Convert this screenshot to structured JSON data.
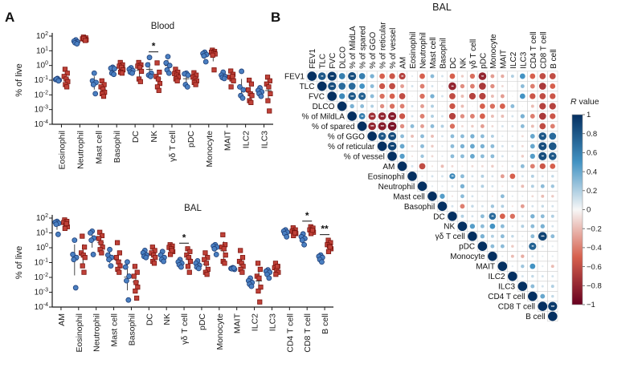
{
  "panels": {
    "a_label": "A",
    "b_label": "B"
  },
  "colors": {
    "blue_marker": "#4a7fc1",
    "blue_edge": "#1f3f77",
    "red_marker": "#bf4138",
    "red_edge": "#7c150f",
    "axis": "#1a1a1a",
    "corr_pos": "#053061",
    "corr_mid": "#f7f7f7",
    "corr_neg": "#67001f",
    "grid": "#c9c9c9"
  },
  "chart_data": [
    {
      "type": "scatter",
      "id": "blood",
      "title": "Blood",
      "ylabel": "% of live",
      "yscale": "log",
      "ylim": [
        0.0001,
        100
      ],
      "y_tick_exponents": [
        2,
        1,
        0,
        -1,
        -2,
        -3,
        -4
      ],
      "categories": [
        "Eosinophil",
        "Neutrophil",
        "Mast cell",
        "Basophil",
        "DC",
        "NK",
        "γδ T cell",
        "pDC",
        "Monocyte",
        "MAIT",
        "ILC2",
        "ILC3"
      ],
      "series": {
        "blue": [
          [
            0.13,
            0.11,
            0.1,
            0.12,
            0.09
          ],
          [
            55,
            45,
            40,
            35,
            30
          ],
          [
            0.3,
            0.09,
            0.07,
            0.05,
            0.012
          ],
          [
            0.75,
            0.65,
            0.6,
            0.3,
            0.25
          ],
          [
            0.7,
            0.55,
            0.45,
            0.35,
            0.3
          ],
          [
            3.5,
            1.1,
            0.3,
            0.22,
            0.18
          ],
          [
            4,
            1.5,
            1.0,
            0.5,
            0.3
          ],
          [
            0.3,
            0.27,
            0.22,
            0.05,
            0.035
          ],
          [
            8,
            6.5,
            5.5,
            4.5,
            1.8
          ],
          [
            0.35,
            0.22,
            0.18,
            0.15,
            0.13
          ],
          [
            0.4,
            0.035,
            0.022,
            0.009,
            0.006
          ],
          [
            0.03,
            0.02,
            0.016,
            0.012,
            0.008
          ]
        ],
        "red": [
          [
            0.55,
            0.3,
            0.18,
            0.12,
            0.08,
            0.05,
            0.035
          ],
          [
            85,
            75,
            65,
            60,
            55,
            70,
            50
          ],
          [
            0.09,
            0.05,
            0.035,
            0.025,
            0.015,
            0.012,
            0.008
          ],
          [
            1.6,
            1.1,
            0.9,
            0.75,
            0.5,
            0.35,
            0.3
          ],
          [
            1.6,
            1.1,
            0.9,
            0.75,
            0.4,
            0.12,
            0.08
          ],
          [
            1.5,
            0.35,
            0.18,
            0.12,
            0.06,
            0.035,
            0.02
          ],
          [
            0.55,
            0.35,
            0.28,
            0.22,
            0.16,
            0.12,
            0.09
          ],
          [
            0.32,
            0.22,
            0.16,
            0.12,
            0.09,
            0.07,
            0.05
          ],
          [
            11,
            9,
            8,
            7,
            6,
            5,
            0.5
          ],
          [
            0.42,
            0.25,
            0.16,
            0.12,
            0.09,
            0.035,
            0.18
          ],
          [
            0.1,
            0.055,
            0.022,
            0.012,
            0.009,
            0.004,
            0.003
          ],
          [
            0.16,
            0.09,
            0.055,
            0.035,
            0.012,
            0.004,
            0.0008
          ]
        ]
      },
      "significance": [
        {
          "category": "NK",
          "label": "*"
        }
      ]
    },
    {
      "type": "scatter",
      "id": "bal",
      "title": "BAL",
      "ylabel": "% of live",
      "yscale": "log",
      "ylim": [
        0.0001,
        100
      ],
      "y_tick_exponents": [
        2,
        1,
        0,
        -1,
        -2,
        -3,
        -4
      ],
      "categories": [
        "AM",
        "Eosinophil",
        "Neutrophil",
        "Mast cell",
        "Basophil",
        "DC",
        "NK",
        "γδ T cell",
        "pDC",
        "Monocyte",
        "MAIT",
        "ILC2",
        "ILC3",
        "CD4 T cell",
        "CD8 T cell",
        "B cell"
      ],
      "series": {
        "blue": [
          [
            60,
            52,
            45,
            38,
            8
          ],
          [
            3.2,
            0.35,
            0.22,
            0.16,
            0.002
          ],
          [
            13,
            10,
            4.5,
            3.2,
            0.35
          ],
          [
            0.75,
            0.32,
            0.22,
            0.16,
            0.06
          ],
          [
            0.11,
            0.05,
            0.012,
            0.006,
            0.0003
          ],
          [
            0.65,
            0.45,
            0.32,
            0.26,
            0.22
          ],
          [
            0.55,
            0.32,
            0.22,
            0.16,
            0.12
          ],
          [
            0.16,
            0.11,
            0.09,
            0.07,
            0.05
          ],
          [
            0.13,
            0.09,
            0.065,
            0.05,
            0.04
          ],
          [
            1.6,
            1.3,
            1.1,
            0.85,
            0.35
          ],
          [
            0.045,
            0.04,
            0.035,
            0.038,
            0.042
          ],
          [
            0.009,
            0.006,
            0.0045,
            0.0035,
            0.0025
          ],
          [
            0.032,
            0.026,
            0.022,
            0.016,
            0.009
          ],
          [
            16,
            13,
            11,
            9,
            5.5
          ],
          [
            8.5,
            5.5,
            4.2,
            3.2,
            1.6
          ],
          [
            0.32,
            0.26,
            0.22,
            0.16,
            0.11
          ]
        ],
        "red": [
          [
            75,
            60,
            50,
            32,
            26,
            20,
            42
          ],
          [
            6,
            1.1,
            0.45,
            0.32,
            0.22,
            0.06,
            0.022
          ],
          [
            11,
            6.5,
            4.2,
            2.2,
            1.1,
            0.75,
            0.45
          ],
          [
            2.2,
            0.45,
            0.22,
            0.11,
            0.06,
            0.035,
            0.022
          ],
          [
            0.055,
            0.022,
            0.012,
            0.0045,
            0.0022,
            0.0012,
            0.0004
          ],
          [
            1.1,
            0.65,
            0.45,
            0.32,
            0.22,
            0.12,
            0.09
          ],
          [
            1.6,
            1.3,
            1.05,
            0.85,
            0.55,
            0.35,
            0.65
          ],
          [
            0.85,
            0.55,
            0.32,
            0.22,
            0.12,
            0.055,
            0.022
          ],
          [
            0.45,
            0.22,
            0.16,
            0.09,
            0.035,
            0.022,
            0.016
          ],
          [
            7.5,
            1.6,
            1.1,
            0.85,
            0.32,
            0.12,
            0.09
          ],
          [
            0.65,
            0.22,
            0.12,
            0.09,
            0.055,
            0.035,
            0.022
          ],
          [
            0.09,
            0.035,
            0.012,
            0.009,
            0.0022,
            0.0012,
            0.00022
          ],
          [
            0.09,
            0.055,
            0.045,
            0.032,
            0.022,
            0.016,
            0.055
          ],
          [
            22,
            16,
            13,
            11,
            9,
            6.5,
            10
          ],
          [
            26,
            21,
            16,
            13,
            11,
            9,
            15
          ],
          [
            3.2,
            2.2,
            1.6,
            1.3,
            0.85,
            0.55,
            1.1
          ]
        ]
      },
      "significance": [
        {
          "category": "γδ T cell",
          "label": "*"
        },
        {
          "category": "CD8 T cell",
          "label": "*"
        },
        {
          "category": "B cell",
          "label": "**"
        }
      ]
    },
    {
      "type": "heatmap",
      "id": "correlation",
      "title": "BAL",
      "labels": [
        "FEV1",
        "TLC",
        "FVC",
        "DLCO",
        "% of MildLA",
        "% of spared",
        "% of GGO",
        "% of reticular",
        "% of vessel",
        "AM",
        "Eosinophil",
        "Neutrophil",
        "Mast cell",
        "Basophil",
        "DC",
        "NK",
        "γδ T cell",
        "pDC",
        "Monocyte",
        "MAIT",
        "ILC2",
        "ILC3",
        "CD4 T cell",
        "CD8 T cell",
        "B cell"
      ],
      "matrix_note": "upper triangular; rows[i] holds R values from the diagonal (col=i) rightward",
      "rows": [
        [
          1,
          0.8,
          0.95,
          0.6,
          0.85,
          0.6,
          0.35,
          -0.5,
          -0.55,
          -0.65,
          0.05,
          -0.5,
          0.3,
          0.1,
          -0.5,
          -0.15,
          -0.45,
          -0.8,
          -0.3,
          -0.25,
          0.2,
          0.5,
          -0.5,
          -0.6,
          -0.6
        ],
        [
          1,
          0.85,
          0.7,
          0.7,
          0.5,
          0.3,
          -0.55,
          -0.6,
          -0.3,
          0.1,
          -0.4,
          0.1,
          0.05,
          -0.8,
          -0.35,
          -0.4,
          -0.7,
          -0.35,
          -0.1,
          0,
          0.3,
          -0.4,
          -0.7,
          -0.5
        ],
        [
          1,
          0.55,
          0.8,
          0.75,
          0.3,
          -0.45,
          -0.5,
          -0.6,
          0,
          -0.45,
          0.35,
          0.1,
          -0.6,
          -0.2,
          -0.65,
          -0.65,
          -0.2,
          -0.3,
          0,
          0.5,
          -0.55,
          -0.6,
          -0.55
        ],
        [
          1,
          0.35,
          0.3,
          0.2,
          -0.35,
          -0.45,
          -0.4,
          0.1,
          -0.3,
          0.2,
          0,
          -0.55,
          -0.2,
          0,
          -0.5,
          -0.45,
          -0.5,
          0.3,
          0,
          -0.2,
          -0.65,
          -0.65
        ],
        [
          1,
          0.6,
          -0.75,
          -0.8,
          -0.85,
          -0.55,
          0.1,
          -0.4,
          0.2,
          0.1,
          -0.65,
          -0.35,
          -0.4,
          -0.5,
          -0.2,
          -0.2,
          0.1,
          0.35,
          -0.4,
          -0.7,
          -0.55
        ],
        [
          1,
          -0.8,
          -0.85,
          -0.9,
          -0.35,
          0.3,
          -0.3,
          0.3,
          0.2,
          -0.45,
          -0.1,
          -0.15,
          -0.3,
          -0.1,
          0.1,
          0.1,
          0.3,
          -0.2,
          -0.6,
          -0.4
        ],
        [
          1,
          0.8,
          0.85,
          0.3,
          -0.2,
          0.3,
          -0.2,
          0.1,
          0.3,
          0.3,
          0.35,
          0.3,
          0.2,
          0.05,
          0.05,
          -0.1,
          0.4,
          0.8,
          0.7
        ],
        [
          1,
          0.9,
          0.4,
          -0.1,
          0.3,
          -0.15,
          0.05,
          0.3,
          0.35,
          0.4,
          0.35,
          0.3,
          0.1,
          0.1,
          -0.1,
          0.4,
          0.85,
          0.8
        ],
        [
          1,
          0.45,
          -0.05,
          0.25,
          -0.1,
          0.05,
          0.3,
          0.3,
          0.4,
          0.3,
          0.3,
          0.1,
          0.05,
          -0.15,
          0.45,
          0.85,
          0.8
        ],
        [
          1,
          0.1,
          -0.6,
          -0.05,
          -0.2,
          -0.1,
          -0.05,
          -0.1,
          -0.1,
          -0.15,
          -0.05,
          0.1,
          0.3,
          -0.4,
          -0.55,
          -0.5
        ],
        [
          1,
          0.05,
          0.1,
          0.1,
          0.55,
          0.3,
          0.1,
          0.2,
          0.1,
          -0.3,
          -0.5,
          0.1,
          0.2,
          0.1,
          0.15
        ],
        [
          1,
          0.05,
          0.05,
          0.1,
          0.35,
          0.1,
          0.2,
          0.1,
          -0.05,
          0.1,
          -0.2,
          0.2,
          0.3,
          0.25
        ],
        [
          1,
          0.45,
          -0.05,
          0.3,
          0.1,
          0.05,
          -0.05,
          0.3,
          0.05,
          0.05,
          -0.1,
          -0.2,
          -0.15
        ],
        [
          1,
          0.1,
          -0.4,
          0.15,
          0.1,
          0.25,
          0.2,
          -0.05,
          -0.3,
          0.1,
          0.15,
          0.1
        ],
        [
          1,
          0.2,
          0.1,
          0.3,
          0.7,
          -0.5,
          -0.45,
          0.1,
          0.35,
          0.3,
          0.2
        ],
        [
          1,
          0.45,
          0.3,
          0.5,
          0.3,
          0.05,
          0.2,
          0.3,
          0.35,
          0.1
        ],
        [
          1,
          0.35,
          0.2,
          0.3,
          0.15,
          0.05,
          0.3,
          0.9,
          0.3
        ],
        [
          1,
          0.3,
          0.3,
          -0.15,
          0.05,
          0.75,
          0.1,
          0.05
        ],
        [
          1,
          0.05,
          -0.2,
          -0.25,
          0.1,
          0.05,
          0.05
        ],
        [
          1,
          0.05,
          0.25,
          0.5,
          0.05,
          -0.2
        ],
        [
          1,
          0.1,
          0.15,
          0.1,
          0.1
        ],
        [
          1,
          0.3,
          0.1,
          0.2
        ],
        [
          1,
          0.4,
          0.15
        ],
        [
          1,
          0.95
        ],
        [
          1
        ]
      ],
      "stars": [
        [
          "FEV1",
          "TLC",
          "**"
        ],
        [
          "FEV1",
          "FVC",
          "***"
        ],
        [
          "FEV1",
          "% of MildLA",
          "***"
        ],
        [
          "FEV1",
          "AM",
          "**"
        ],
        [
          "FEV1",
          "pDC",
          "**"
        ],
        [
          "TLC",
          "FVC",
          "***"
        ],
        [
          "TLC",
          "DC",
          "**"
        ],
        [
          "FVC",
          "% of MildLA",
          "***"
        ],
        [
          "FVC",
          "% of spared",
          "**"
        ],
        [
          "% of MildLA",
          "% of spared",
          "**"
        ],
        [
          "% of MildLA",
          "% of GGO",
          "***"
        ],
        [
          "% of MildLA",
          "% of reticular",
          "***"
        ],
        [
          "% of MildLA",
          "% of vessel",
          "***"
        ],
        [
          "% of spared",
          "% of GGO",
          "***"
        ],
        [
          "% of spared",
          "% of reticular",
          "***"
        ],
        [
          "% of spared",
          "% of vessel",
          "***"
        ],
        [
          "% of GGO",
          "% of reticular",
          "**"
        ],
        [
          "% of GGO",
          "% of vessel",
          "***"
        ],
        [
          "% of GGO",
          "CD8 T cell",
          "**"
        ],
        [
          "% of reticular",
          "% of vessel",
          "***"
        ],
        [
          "% of reticular",
          "CD8 T cell",
          "**"
        ],
        [
          "% of vessel",
          "CD8 T cell",
          "**"
        ],
        [
          "% of vessel",
          "B cell",
          "**"
        ],
        [
          "Eosinophil",
          "DC",
          "**"
        ],
        [
          "DC",
          "Monocyte",
          "**"
        ],
        [
          "γδ T cell",
          "CD8 T cell",
          "***"
        ],
        [
          "pDC",
          "CD4 T cell",
          "**"
        ],
        [
          "CD8 T cell",
          "B cell",
          "***"
        ]
      ],
      "legend": {
        "title_italic": "R",
        "title_rest": " value",
        "tick_values": [
          1,
          0.8,
          0.6,
          0.4,
          0.2,
          0,
          -0.2,
          -0.4,
          -0.6,
          -0.8,
          -1
        ],
        "tick_labels": [
          "1",
          "0.8",
          "0.6",
          "0.4",
          "0.2",
          "0",
          "−0.2",
          "−0.4",
          "−0.6",
          "−0.8",
          "−1"
        ],
        "position": "right"
      }
    }
  ]
}
